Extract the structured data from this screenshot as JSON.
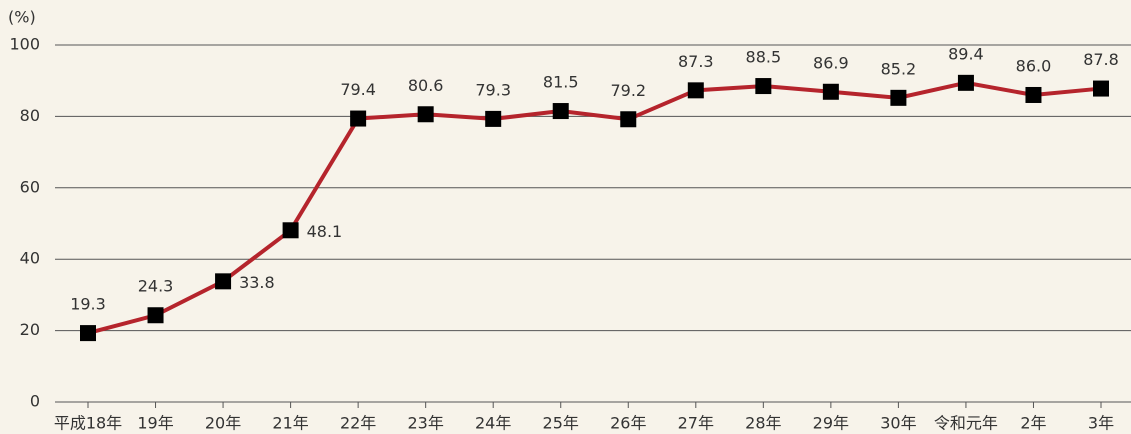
{
  "chart_data": {
    "type": "line",
    "y_label": "(%)",
    "categories": [
      "平成18年",
      "19年",
      "20年",
      "21年",
      "22年",
      "23年",
      "24年",
      "25年",
      "26年",
      "27年",
      "28年",
      "29年",
      "30年",
      "令和元年",
      "2年",
      "3年"
    ],
    "series": [
      {
        "color": "#b5242c",
        "marker_color": "#000000",
        "values": [
          19.3,
          24.3,
          33.8,
          48.1,
          79.4,
          80.6,
          79.3,
          81.5,
          79.2,
          87.3,
          88.5,
          86.9,
          85.2,
          89.4,
          86.0,
          87.8
        ],
        "value_labels": [
          "19.3",
          "24.3",
          "33.8",
          "48.1",
          "79.4",
          "80.6",
          "79.3",
          "81.5",
          "79.2",
          "87.3",
          "88.5",
          "86.9",
          "85.2",
          "89.4",
          "86.0",
          "87.8"
        ]
      }
    ],
    "ylim": [
      0,
      100
    ],
    "yticks": [
      0,
      20,
      40,
      60,
      80,
      100
    ],
    "grid": true
  }
}
